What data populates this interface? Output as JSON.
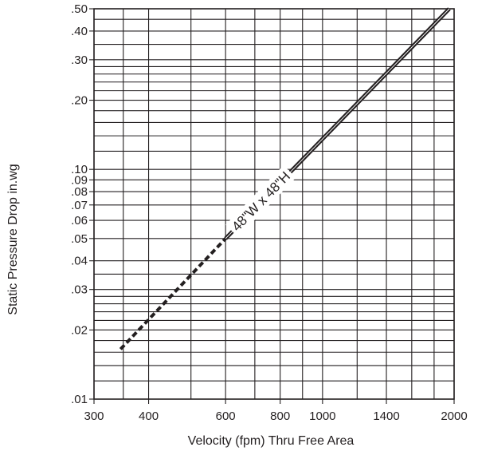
{
  "chart_data": {
    "type": "line",
    "xlabel": "Velocity (fpm) Thru Free Area",
    "ylabel": "Static Pressure Drop in.wg",
    "x_scale": "log",
    "y_scale": "log",
    "xlim": [
      300,
      2000
    ],
    "ylim": [
      0.01,
      0.5
    ],
    "grid": true,
    "x_ticks": [
      300,
      400,
      600,
      800,
      1000,
      1400,
      2000
    ],
    "x_tick_labels": [
      "300",
      "400",
      "600",
      "800",
      "1000",
      "1400",
      "2000"
    ],
    "x_gridlines": [
      300,
      350,
      400,
      500,
      600,
      700,
      800,
      900,
      1000,
      1200,
      1400,
      1600,
      1800,
      2000
    ],
    "y_ticks": [
      0.01,
      0.02,
      0.03,
      0.04,
      0.05,
      0.06,
      0.07,
      0.08,
      0.09,
      0.1,
      0.2,
      0.3,
      0.4,
      0.5
    ],
    "y_tick_labels": [
      ".01",
      ".02",
      ".03",
      ".04",
      ".05",
      ".06",
      ".07",
      ".08",
      ".09",
      ".10",
      ".20",
      ".30",
      ".40",
      ".50"
    ],
    "y_gridlines": [
      0.01,
      0.012,
      0.014,
      0.016,
      0.018,
      0.02,
      0.022,
      0.024,
      0.026,
      0.028,
      0.03,
      0.035,
      0.04,
      0.05,
      0.06,
      0.07,
      0.08,
      0.09,
      0.1,
      0.12,
      0.14,
      0.16,
      0.18,
      0.2,
      0.22,
      0.24,
      0.26,
      0.28,
      0.3,
      0.35,
      0.4,
      0.45,
      0.5
    ],
    "series": [
      {
        "name": "48\"W x 48\"H",
        "solid": {
          "x": [
            600,
            1950
          ],
          "y": [
            0.05,
            0.5
          ]
        },
        "dashed": {
          "x": [
            345,
            600
          ],
          "y": [
            0.0165,
            0.05
          ]
        }
      }
    ]
  }
}
